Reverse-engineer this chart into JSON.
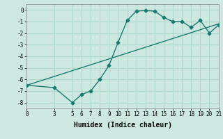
{
  "xlabel": "Humidex (Indice chaleur)",
  "background_color": "#cce8e0",
  "grid_color": "#b0d8d0",
  "line_color": "#1a7a6e",
  "xlim": [
    0,
    21
  ],
  "ylim": [
    -8.5,
    0.5
  ],
  "xticks": [
    0,
    3,
    5,
    6,
    7,
    8,
    9,
    10,
    11,
    12,
    13,
    14,
    15,
    16,
    17,
    18,
    19,
    20,
    21
  ],
  "yticks": [
    0,
    -1,
    -2,
    -3,
    -4,
    -5,
    -6,
    -7,
    -8
  ],
  "curve_x": [
    0,
    3,
    5,
    6,
    7,
    8,
    9,
    10,
    11,
    12,
    13,
    14,
    15,
    16,
    17,
    18,
    19,
    20,
    21
  ],
  "curve_y": [
    -6.5,
    -6.7,
    -8.0,
    -7.3,
    -7.0,
    -6.0,
    -4.8,
    -2.8,
    -0.9,
    -0.1,
    -0.05,
    -0.1,
    -0.65,
    -1.0,
    -1.0,
    -1.5,
    -0.9,
    -2.0,
    -1.3
  ],
  "line_x": [
    0,
    21
  ],
  "line_y": [
    -6.5,
    -1.2
  ],
  "marker": "D",
  "marker_size": 2.5,
  "linewidth": 1.0,
  "tick_fontsize": 5.5,
  "xlabel_fontsize": 7
}
